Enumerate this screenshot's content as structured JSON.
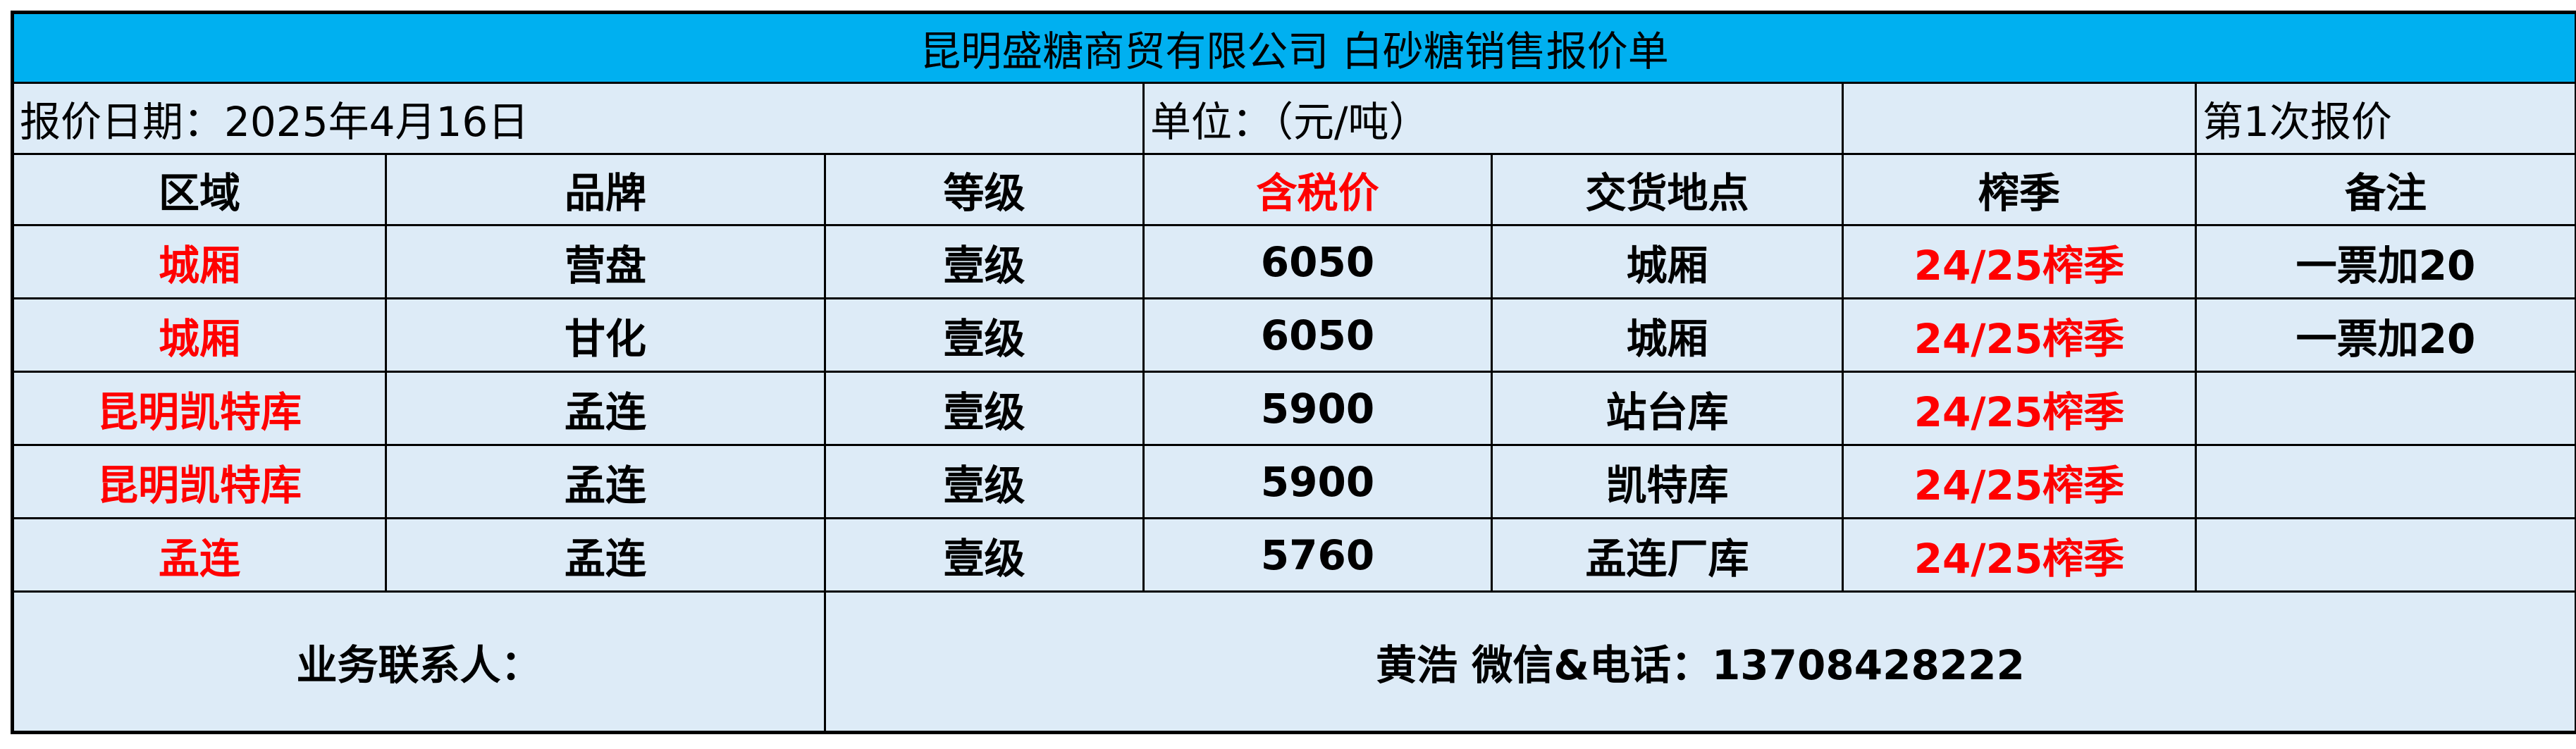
{
  "title": "昆明盛糖商贸有限公司 白砂糖销售报价单",
  "info": {
    "date": "报价日期：2025年4月16日",
    "unit": "单位：（元/吨）",
    "quote_round": "第1次报价"
  },
  "headers": [
    "区域",
    "品牌",
    "等级",
    "含税价",
    "交货地点",
    "榨季",
    "备注"
  ],
  "rows": [
    [
      "城厢",
      "营盘",
      "壹级",
      "6050",
      "城厢",
      "24/25榨季",
      "一票加20"
    ],
    [
      "城厢",
      "甘化",
      "壹级",
      "6050",
      "城厢",
      "24/25榨季",
      "一票加20"
    ],
    [
      "昆明凯特库",
      "孟连",
      "壹级",
      "5900",
      "站台库",
      "24/25榨季",
      ""
    ],
    [
      "昆明凯特库",
      "孟连",
      "壹级",
      "5900",
      "凯特库",
      "24/25榨季",
      ""
    ],
    [
      "孟连",
      "孟连",
      "壹级",
      "5760",
      "孟连厂库",
      "24/25榨季",
      ""
    ]
  ],
  "contact": {
    "label": "业务联系人：",
    "value": "黄浩 微信&电话：13708428222"
  },
  "colors": {
    "title_bg": "#00B0F0",
    "cell_bg": "#DDEBF7",
    "highlight": "#FF0000"
  }
}
